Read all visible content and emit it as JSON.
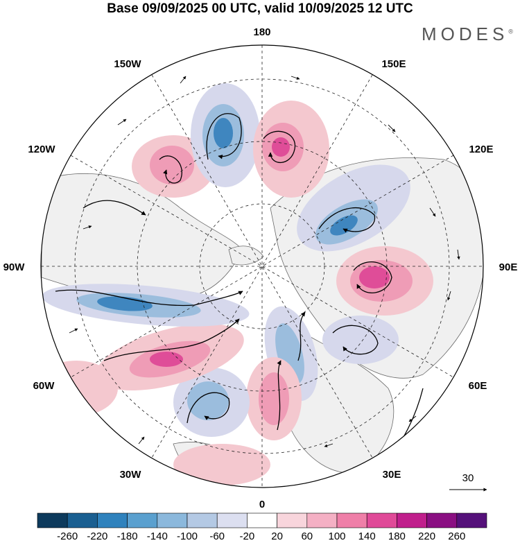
{
  "title": "Base 09/09/2025 00 UTC, valid 10/09/2025 12 UTC",
  "brand": "MODES",
  "brand_mark": "®",
  "longitude_labels": [
    "180",
    "150E",
    "120E",
    "90E",
    "60E",
    "30E",
    "0",
    "30W",
    "60W",
    "90W",
    "120W",
    "150W"
  ],
  "vector_reference": "30",
  "colorbar": {
    "labels": [
      "-260",
      "-220",
      "-180",
      "-140",
      "-100",
      "-60",
      "-20",
      "20",
      "60",
      "100",
      "140",
      "180",
      "220",
      "260"
    ],
    "colors": [
      "#0d3a5c",
      "#1a5f91",
      "#2f82bd",
      "#5aa0cf",
      "#8bb8dc",
      "#b4c9e4",
      "#dcdff0",
      "#ffffff",
      "#f8d5dc",
      "#f4b0c4",
      "#ef7fa8",
      "#e04a98",
      "#c01f8c",
      "#8a0f82",
      "#55117a"
    ]
  },
  "colors": {
    "land": "#f0f0f0",
    "coast": "#6a6a6a",
    "pos_weak": "#f4c8cf",
    "pos_mid": "#ef9cb6",
    "pos_strong": "#df4d98",
    "neg_weak": "#d6d8ec",
    "neg_mid": "#9bbddd",
    "neg_strong": "#3f86bf"
  }
}
